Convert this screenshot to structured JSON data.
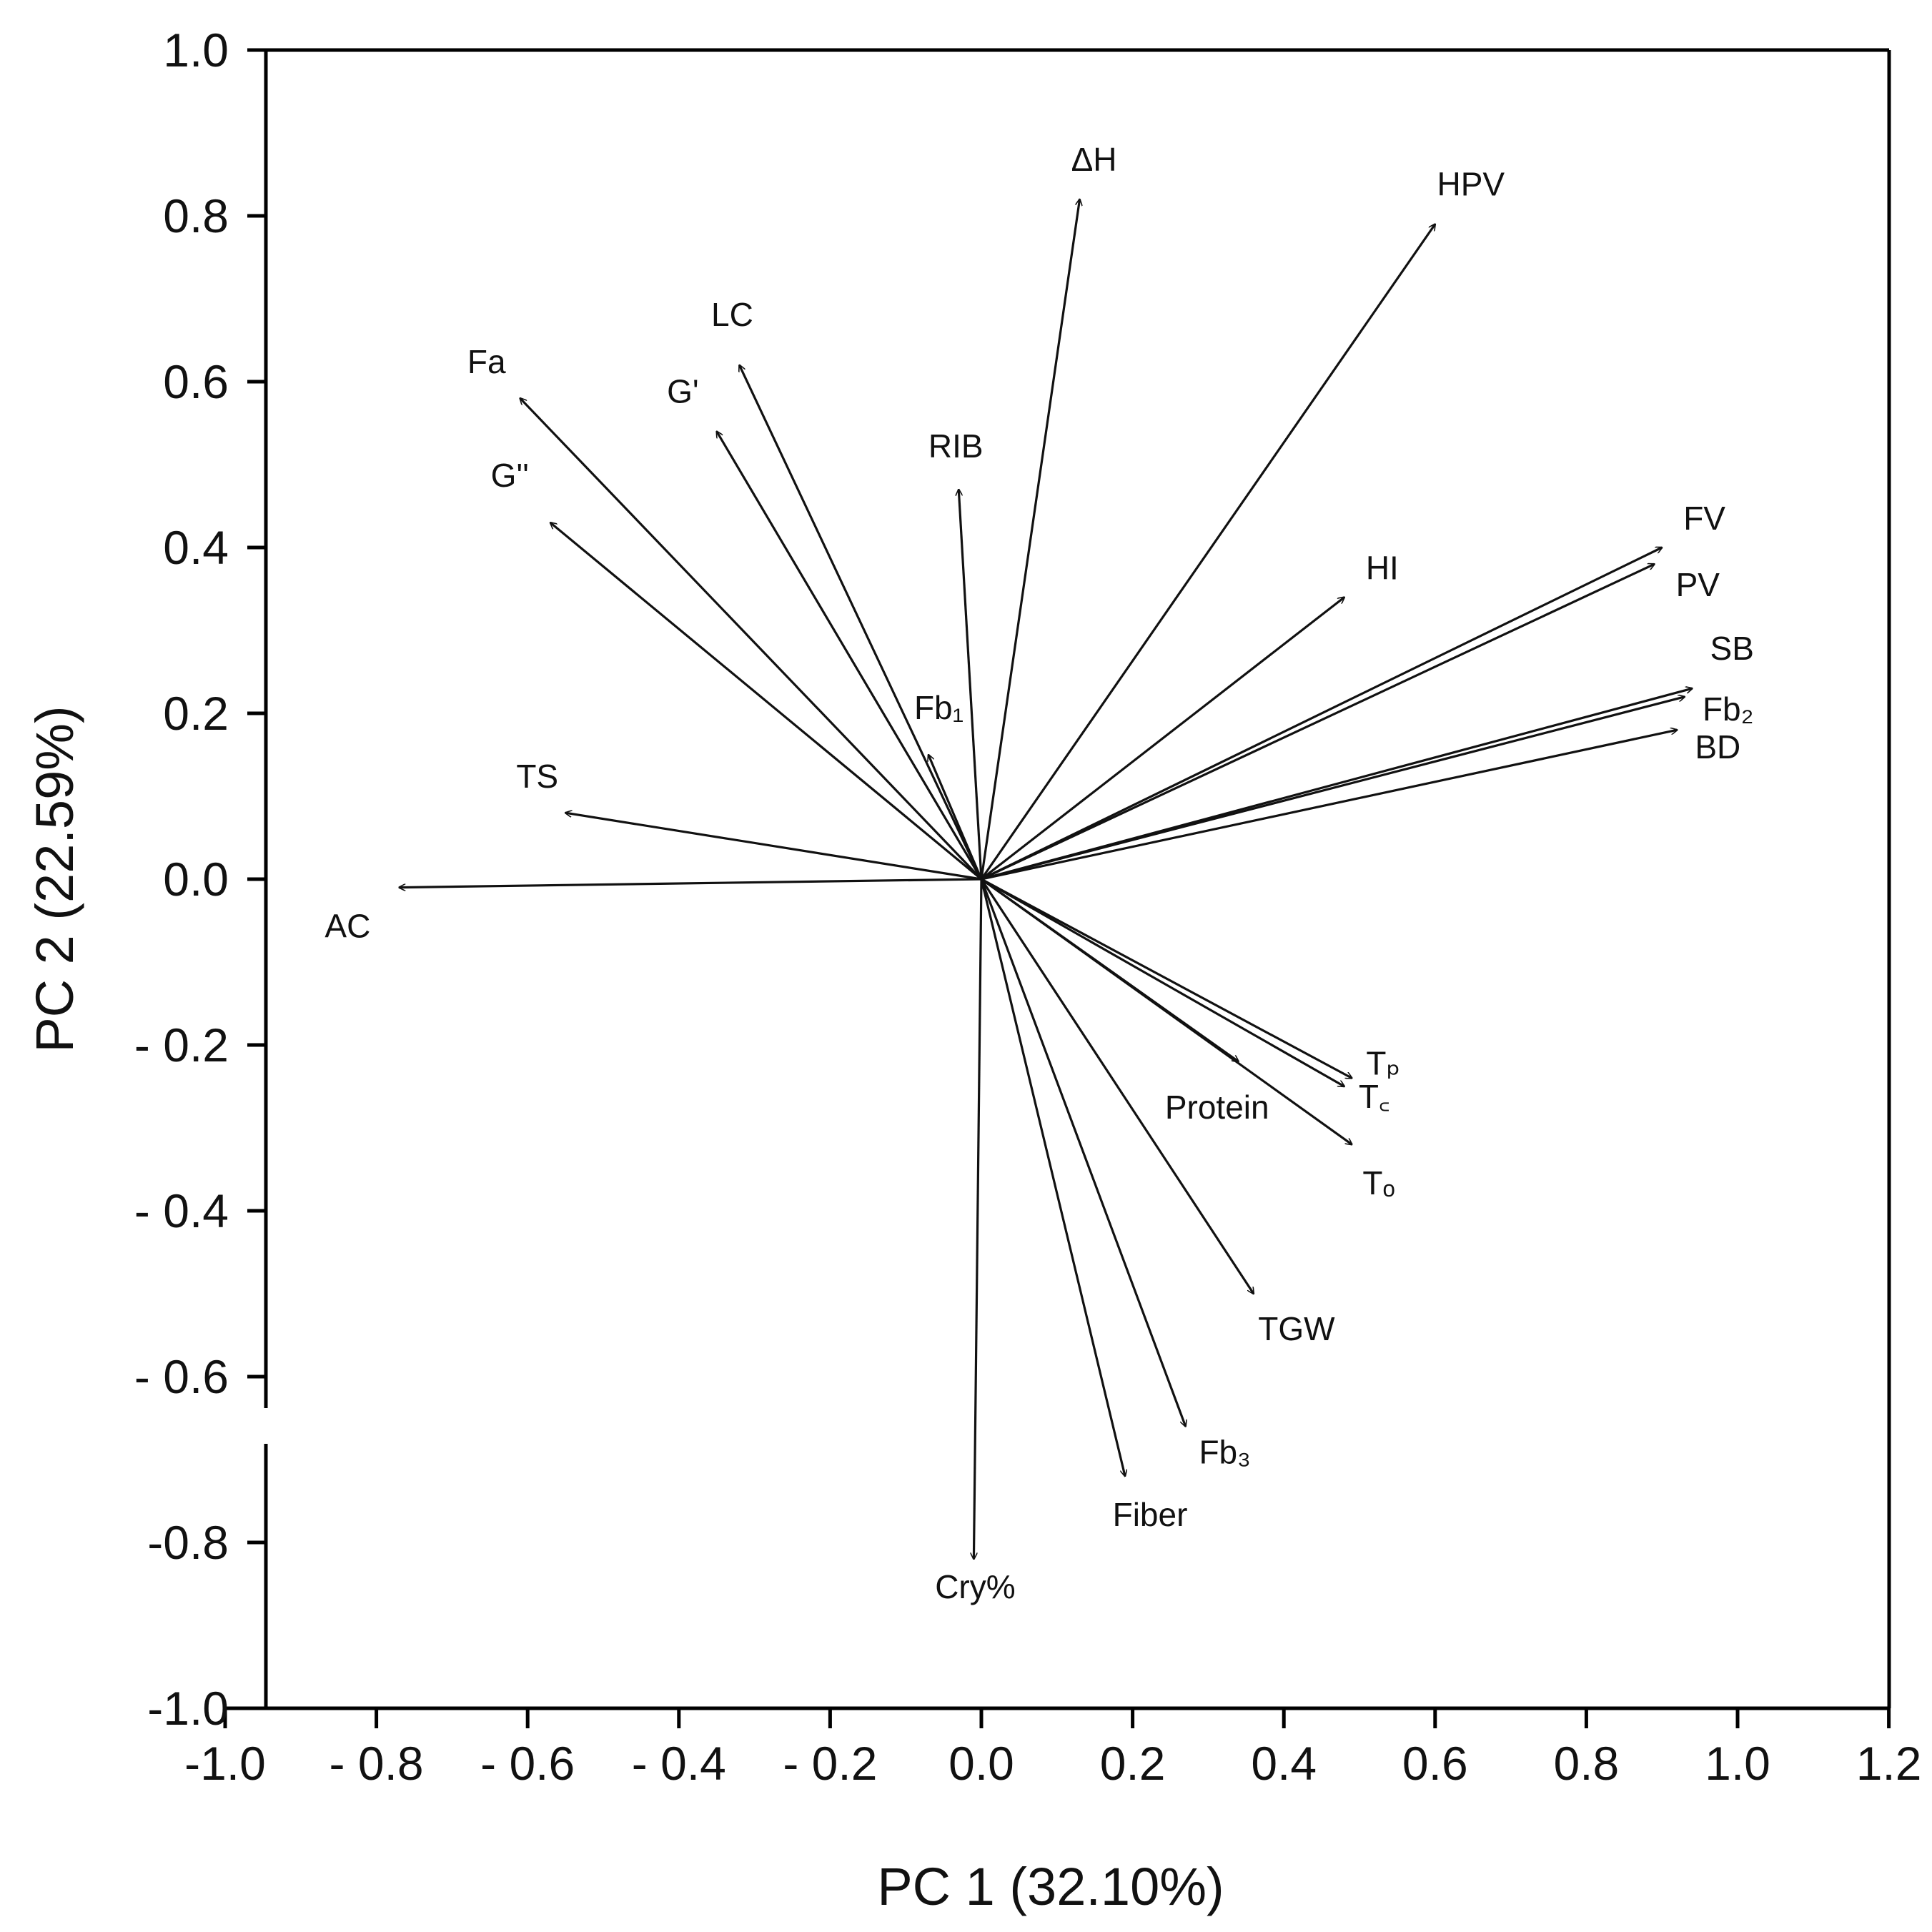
{
  "chart_data": {
    "type": "biplot",
    "title": "",
    "xlabel": "PC 1 (32.10%)",
    "ylabel": "PC 2 (22.59%)",
    "xlim": [
      -1.0,
      1.2
    ],
    "ylim": [
      -1.0,
      1.0
    ],
    "xticks": [
      -1.0,
      -0.8,
      -0.6,
      -0.4,
      -0.2,
      0.0,
      0.2,
      0.4,
      0.6,
      0.8,
      1.0,
      1.2
    ],
    "yticks": [
      -1.0,
      -0.8,
      -0.6,
      -0.4,
      -0.2,
      0.0,
      0.2,
      0.4,
      0.6,
      0.8,
      1.0
    ],
    "xtick_labels": [
      "-1.0",
      "- 0.8",
      "- 0.6",
      "- 0.4",
      "- 0.2",
      "0.0",
      "0.2",
      "0.4",
      "0.6",
      "0.8",
      "1.0",
      "1.2"
    ],
    "ytick_labels": [
      "-1.0",
      "-0.8",
      "- 0.6",
      "- 0.4",
      "- 0.2",
      "0.0",
      "0.2",
      "0.4",
      "0.6",
      "0.8",
      "1.0"
    ],
    "grid": false,
    "vectors": [
      {
        "name": "AC",
        "x": -0.77,
        "y": -0.01
      },
      {
        "name": "TS",
        "x": -0.55,
        "y": 0.08
      },
      {
        "name": "G''",
        "x": -0.57,
        "y": 0.43
      },
      {
        "name": "Fa",
        "x": -0.61,
        "y": 0.58
      },
      {
        "name": "G'",
        "x": -0.35,
        "y": 0.54
      },
      {
        "name": "LC",
        "x": -0.32,
        "y": 0.62
      },
      {
        "name": "Fb₁",
        "x": -0.07,
        "y": 0.15
      },
      {
        "name": "RIB",
        "x": -0.03,
        "y": 0.47
      },
      {
        "name": "ΔH",
        "x": 0.13,
        "y": 0.82
      },
      {
        "name": "HPV",
        "x": 0.6,
        "y": 0.79
      },
      {
        "name": "HI",
        "x": 0.48,
        "y": 0.34
      },
      {
        "name": "FV",
        "x": 0.9,
        "y": 0.4
      },
      {
        "name": "PV",
        "x": 0.89,
        "y": 0.38
      },
      {
        "name": "SB",
        "x": 0.94,
        "y": 0.23
      },
      {
        "name": "Fb₂",
        "x": 0.93,
        "y": 0.22
      },
      {
        "name": "BD",
        "x": 0.92,
        "y": 0.18
      },
      {
        "name": "Tₚ",
        "x": 0.49,
        "y": -0.24
      },
      {
        "name": "T꜀",
        "x": 0.48,
        "y": -0.25
      },
      {
        "name": "Tₒ",
        "x": 0.49,
        "y": -0.32
      },
      {
        "name": "Protein",
        "x": 0.34,
        "y": -0.22
      },
      {
        "name": "TGW",
        "x": 0.36,
        "y": -0.5
      },
      {
        "name": "Fb₃",
        "x": 0.27,
        "y": -0.66
      },
      {
        "name": "Fiber",
        "x": 0.19,
        "y": -0.72
      },
      {
        "name": "Cry%",
        "x": -0.01,
        "y": -0.82
      }
    ]
  }
}
